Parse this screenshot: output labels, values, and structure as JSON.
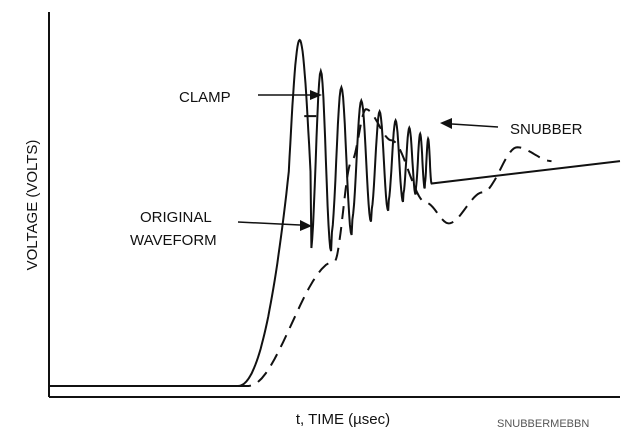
{
  "chart_data": {
    "type": "line",
    "xlabel": "t, TIME (µsec)",
    "ylabel": "VOLTAGE (VOLTS)",
    "grid": false,
    "legend": "none",
    "series": [
      {
        "name": "CLAMP",
        "style": "solid-peak",
        "peak_level": 0.78
      },
      {
        "name": "ORIGINAL WAVEFORM",
        "style": "solid",
        "baseline": 0.0,
        "steady_level": 0.65,
        "rise_start": 0.33,
        "peak_time": 0.45,
        "peak_value": 1.0,
        "ring_decay": 0.26,
        "ring_periods": [
          0.036,
          0.036,
          0.034,
          0.03,
          0.026,
          0.022,
          0.016,
          0.012
        ]
      },
      {
        "name": "SNUBBER",
        "style": "dashed",
        "baseline": 0.0,
        "steady_level": 0.65,
        "rise_start": 0.35,
        "peak_time": 0.55,
        "peak_value": 0.8,
        "undershoot_value": 0.47,
        "second_peak_value": 0.69,
        "end_time": 0.88
      }
    ]
  },
  "annotations": {
    "clamp": "CLAMP",
    "snubber": "SNUBBER",
    "original_line1": "ORIGINAL",
    "original_line2": "WAVEFORM"
  },
  "watermark": "SNUBBERMEBBN",
  "colors": {
    "line": "#111111",
    "background": "#ffffff"
  }
}
